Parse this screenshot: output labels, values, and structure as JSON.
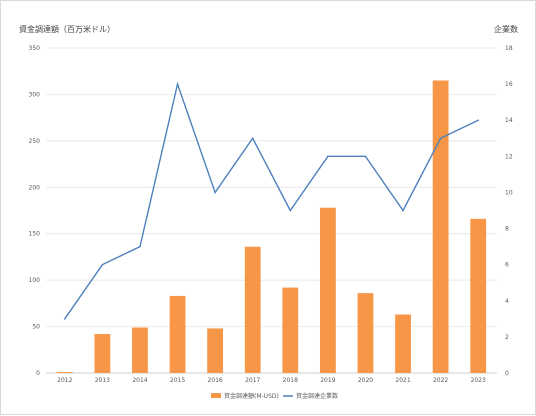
{
  "chart_data": {
    "type": "bar",
    "categories": [
      "2012",
      "2013",
      "2014",
      "2015",
      "2016",
      "2017",
      "2018",
      "2019",
      "2020",
      "2021",
      "2022",
      "2023"
    ],
    "series": [
      {
        "name": "資金調達額(M-USD)",
        "type": "bar",
        "axis": "left",
        "values": [
          1,
          42,
          49,
          83,
          48,
          136,
          92,
          178,
          86,
          63,
          315,
          166
        ]
      },
      {
        "name": "資金調達企業数",
        "type": "line",
        "axis": "right",
        "values": [
          3,
          6,
          7,
          16,
          10,
          13,
          9,
          12,
          12,
          9,
          13,
          14
        ]
      }
    ],
    "ylabel_left": "資金調達額（百万米ドル）",
    "ylabel_right": "企業数",
    "ylim_left": [
      0,
      350
    ],
    "ylim_right": [
      0,
      18
    ],
    "yticks_left": [
      "0",
      "50",
      "100",
      "150",
      "200",
      "250",
      "300",
      "350"
    ],
    "yticks_right": [
      "0",
      "2",
      "4",
      "6",
      "8",
      "10",
      "12",
      "14",
      "16",
      "18"
    ],
    "grid": true,
    "legend_position": "bottom",
    "colors": {
      "bar": "#f79646",
      "line": "#4f81bd",
      "grid": "#e0e0e0"
    }
  }
}
